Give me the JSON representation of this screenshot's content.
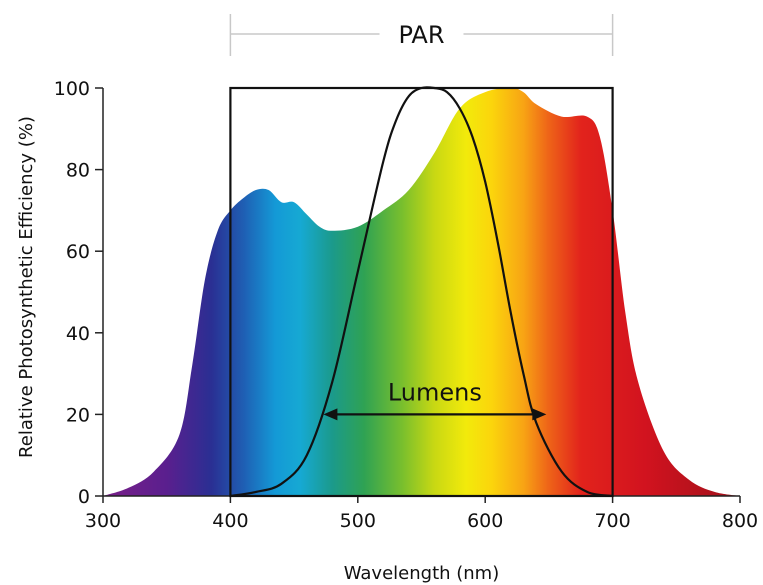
{
  "chart_data": {
    "type": "area",
    "xlabel": "Wavelength (nm)",
    "ylabel": "Relative Photosynthetic Efficiency (%)",
    "xlim": [
      300,
      800
    ],
    "ylim": [
      0,
      100
    ],
    "x_ticks": [
      300,
      400,
      500,
      600,
      700,
      800
    ],
    "y_ticks": [
      0,
      20,
      40,
      60,
      80,
      100
    ],
    "grid": false,
    "series": [
      {
        "type": "area",
        "fill": "visible-spectrum gradient",
        "x": [
          300,
          320,
          340,
          360,
          370,
          380,
          390,
          400,
          410,
          420,
          430,
          440,
          450,
          460,
          470,
          480,
          500,
          520,
          540,
          560,
          580,
          600,
          620,
          630,
          640,
          660,
          680,
          690,
          700,
          710,
          720,
          740,
          760,
          780,
          800
        ],
        "y": [
          0,
          2,
          6,
          15,
          32,
          53,
          65,
          70,
          73,
          75,
          75,
          72,
          72,
          69,
          66,
          65,
          66,
          70,
          75,
          84,
          95,
          99,
          100,
          99,
          96,
          93,
          93,
          88,
          70,
          45,
          28,
          11,
          4,
          1,
          0
        ]
      },
      {
        "type": "line",
        "color": "#111111",
        "x": [
          400,
          420,
          440,
          460,
          480,
          500,
          520,
          530,
          540,
          550,
          560,
          570,
          580,
          590,
          600,
          610,
          620,
          630,
          640,
          660,
          680,
          700
        ],
        "y": [
          0,
          1,
          3,
          10,
          28,
          55,
          82,
          92,
          98,
          100,
          100,
          99,
          95,
          88,
          77,
          62,
          45,
          30,
          18,
          6,
          1,
          0
        ]
      }
    ],
    "annotations": {
      "par": {
        "label": "PAR",
        "x_range": [
          400,
          700
        ],
        "y_range": [
          0,
          100
        ]
      },
      "lumens": {
        "label": "Lumens",
        "x_range": [
          473,
          648
        ],
        "y": 20
      }
    }
  },
  "colors": {
    "axis": "#222222",
    "par_bracket": "#c8c8c8",
    "outline": "#111111"
  }
}
